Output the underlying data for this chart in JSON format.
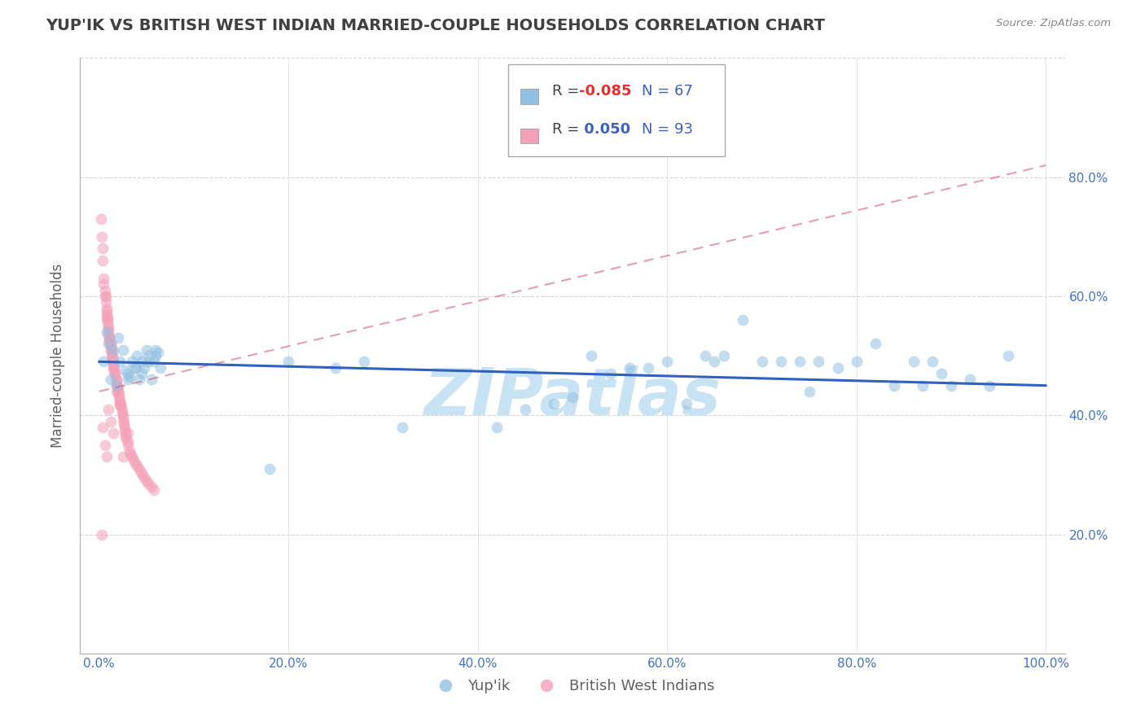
{
  "title": "YUP'IK VS BRITISH WEST INDIAN MARRIED-COUPLE HOUSEHOLDS CORRELATION CHART",
  "source_text": "Source: ZipAtlas.com",
  "ylabel": "Married-couple Households",
  "xlim": [
    -0.02,
    1.02
  ],
  "ylim": [
    0.0,
    1.0
  ],
  "xticks": [
    0.0,
    0.2,
    0.4,
    0.6,
    0.8,
    1.0
  ],
  "xticklabels": [
    "0.0%",
    "20.0%",
    "40.0%",
    "60.0%",
    "80.0%",
    "100.0%"
  ],
  "yticks": [
    0.2,
    0.4,
    0.6,
    0.8
  ],
  "yticklabels": [
    "20.0%",
    "40.0%",
    "60.0%",
    "80.0%"
  ],
  "blue_color": "#92C0E0",
  "pink_color": "#F4A0B8",
  "blue_line_color": "#3060C0",
  "pink_line_color": "#D06080",
  "title_color": "#404040",
  "axis_label_color": "#606060",
  "tick_label_color": "#4472C4",
  "watermark_color": "#C8E4F4",
  "grid_color": "#CCCCCC",
  "background_color": "#FFFFFF",
  "scatter_size": 100,
  "scatter_alpha": 0.55,
  "yupik_x": [
    0.005,
    0.008,
    0.01,
    0.012,
    0.015,
    0.018,
    0.02,
    0.022,
    0.025,
    0.028,
    0.03,
    0.032,
    0.035,
    0.038,
    0.04,
    0.042,
    0.045,
    0.048,
    0.05,
    0.052,
    0.055,
    0.058,
    0.06,
    0.062,
    0.065,
    0.03,
    0.038,
    0.045,
    0.052,
    0.06,
    0.18,
    0.2,
    0.25,
    0.28,
    0.32,
    0.42,
    0.45,
    0.48,
    0.5,
    0.52,
    0.54,
    0.56,
    0.58,
    0.6,
    0.62,
    0.64,
    0.65,
    0.66,
    0.68,
    0.7,
    0.72,
    0.74,
    0.75,
    0.76,
    0.78,
    0.8,
    0.82,
    0.84,
    0.86,
    0.87,
    0.88,
    0.89,
    0.9,
    0.92,
    0.94,
    0.96
  ],
  "yupik_y": [
    0.49,
    0.54,
    0.52,
    0.46,
    0.51,
    0.45,
    0.53,
    0.49,
    0.51,
    0.475,
    0.47,
    0.465,
    0.49,
    0.48,
    0.5,
    0.46,
    0.49,
    0.48,
    0.51,
    0.5,
    0.46,
    0.49,
    0.5,
    0.505,
    0.48,
    0.46,
    0.48,
    0.47,
    0.49,
    0.51,
    0.31,
    0.49,
    0.48,
    0.49,
    0.38,
    0.38,
    0.41,
    0.42,
    0.43,
    0.5,
    0.47,
    0.48,
    0.48,
    0.49,
    0.42,
    0.5,
    0.49,
    0.5,
    0.56,
    0.49,
    0.49,
    0.49,
    0.44,
    0.49,
    0.48,
    0.49,
    0.52,
    0.45,
    0.49,
    0.45,
    0.49,
    0.47,
    0.45,
    0.46,
    0.45,
    0.5
  ],
  "bwi_x": [
    0.002,
    0.003,
    0.004,
    0.004,
    0.005,
    0.005,
    0.006,
    0.006,
    0.007,
    0.007,
    0.008,
    0.008,
    0.008,
    0.008,
    0.009,
    0.009,
    0.009,
    0.01,
    0.01,
    0.01,
    0.01,
    0.011,
    0.011,
    0.011,
    0.012,
    0.012,
    0.012,
    0.012,
    0.013,
    0.013,
    0.013,
    0.014,
    0.014,
    0.014,
    0.015,
    0.015,
    0.015,
    0.016,
    0.016,
    0.017,
    0.017,
    0.018,
    0.018,
    0.018,
    0.019,
    0.019,
    0.02,
    0.02,
    0.02,
    0.021,
    0.021,
    0.022,
    0.022,
    0.023,
    0.023,
    0.024,
    0.024,
    0.025,
    0.025,
    0.026,
    0.026,
    0.027,
    0.027,
    0.028,
    0.028,
    0.029,
    0.03,
    0.03,
    0.032,
    0.033,
    0.035,
    0.036,
    0.038,
    0.04,
    0.042,
    0.044,
    0.046,
    0.048,
    0.05,
    0.052,
    0.055,
    0.058,
    0.004,
    0.006,
    0.008,
    0.01,
    0.012,
    0.015,
    0.018,
    0.022,
    0.025,
    0.03,
    0.003
  ],
  "bwi_y": [
    0.73,
    0.7,
    0.66,
    0.68,
    0.62,
    0.63,
    0.6,
    0.61,
    0.59,
    0.6,
    0.57,
    0.575,
    0.58,
    0.565,
    0.56,
    0.555,
    0.565,
    0.55,
    0.545,
    0.54,
    0.535,
    0.53,
    0.525,
    0.53,
    0.52,
    0.52,
    0.515,
    0.51,
    0.51,
    0.505,
    0.5,
    0.5,
    0.495,
    0.49,
    0.49,
    0.485,
    0.48,
    0.48,
    0.475,
    0.47,
    0.47,
    0.46,
    0.46,
    0.455,
    0.45,
    0.45,
    0.445,
    0.44,
    0.44,
    0.435,
    0.43,
    0.425,
    0.42,
    0.42,
    0.415,
    0.41,
    0.405,
    0.4,
    0.395,
    0.39,
    0.385,
    0.38,
    0.375,
    0.37,
    0.365,
    0.36,
    0.355,
    0.35,
    0.34,
    0.335,
    0.33,
    0.325,
    0.32,
    0.315,
    0.31,
    0.305,
    0.3,
    0.295,
    0.29,
    0.285,
    0.28,
    0.275,
    0.38,
    0.35,
    0.33,
    0.41,
    0.39,
    0.37,
    0.44,
    0.42,
    0.33,
    0.37,
    0.2
  ],
  "blue_trend_x": [
    0.0,
    1.0
  ],
  "blue_trend_y": [
    0.49,
    0.45
  ],
  "pink_trend_x": [
    0.0,
    1.0
  ],
  "pink_trend_y": [
    0.44,
    0.82
  ]
}
